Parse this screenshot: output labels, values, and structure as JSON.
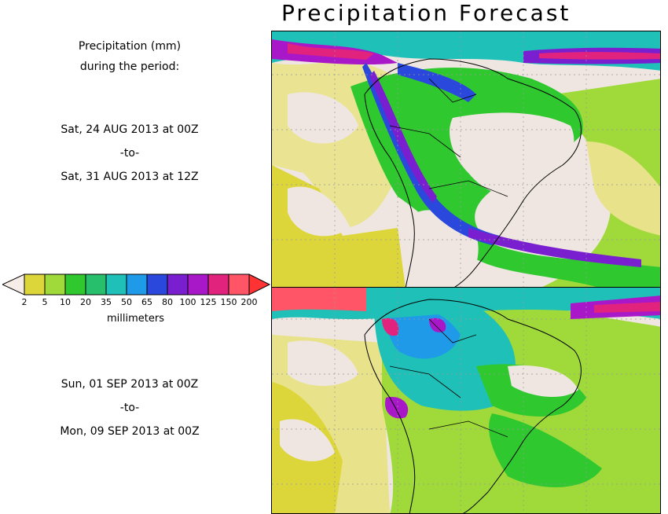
{
  "title": "Precipitation Forecast",
  "legend": {
    "heading_line1": "Precipitation (mm)",
    "heading_line2": "during the period:",
    "units": "millimeters",
    "ticks": [
      "2",
      "5",
      "10",
      "20",
      "35",
      "50",
      "65",
      "80",
      "100",
      "125",
      "150",
      "200"
    ],
    "colors": [
      "#ddd63a",
      "#9fd93a",
      "#2fc82f",
      "#27bf6b",
      "#1ec0b8",
      "#1e9ae8",
      "#2a48dc",
      "#7a1fd0",
      "#a818c8",
      "#e2237d",
      "#ff5566"
    ],
    "under_color": "#f6ece8",
    "over_color": "#ff3333"
  },
  "period1": {
    "start": "Sat, 24 AUG 2013 at 00Z",
    "separator": "-to-",
    "end": "Sat, 31 AUG 2013 at 12Z"
  },
  "period2": {
    "start": "Sun, 01 SEP 2013 at 00Z",
    "separator": "-to-",
    "end": "Mon, 09 SEP 2013 at 00Z"
  },
  "maps": [
    {
      "name": "forecast-map-period-1",
      "region": "South America"
    },
    {
      "name": "forecast-map-period-2",
      "region": "South America"
    }
  ]
}
